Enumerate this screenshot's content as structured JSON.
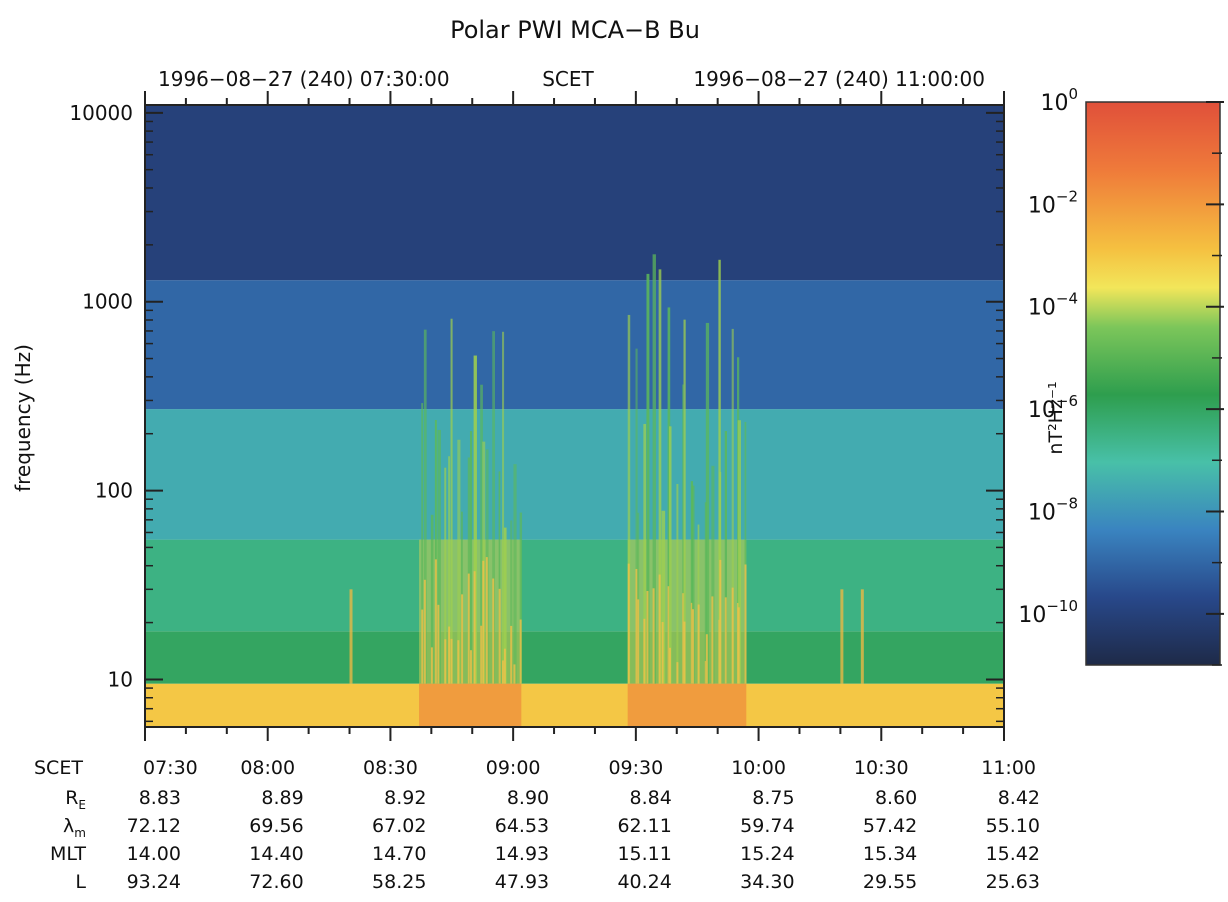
{
  "chart_data": {
    "type": "heatmap",
    "title": "Polar PWI MCA−B Bu",
    "top_axis": {
      "left_label": "1996−08−27 (240) 07:30:00",
      "center_label": "SCET",
      "right_label": "1996−08−27 (240) 11:00:00"
    },
    "ylabel": "frequency (Hz)",
    "yscale": "log",
    "ylim": [
      5.6,
      11000
    ],
    "yticks": [
      10,
      100,
      1000,
      10000
    ],
    "ytick_labels": [
      "10",
      "100",
      "1000",
      "10000"
    ],
    "xlim": [
      "07:30",
      "11:00"
    ],
    "xticks": [
      "07:30",
      "08:00",
      "08:30",
      "09:00",
      "09:30",
      "10:00",
      "10:30",
      "11:00"
    ],
    "colorbar": {
      "label": "nT²Hz⁻¹",
      "scale": "log",
      "range": [
        "1e-11",
        "1e0"
      ],
      "tick_values": [
        "1e0",
        "1e-2",
        "1e-4",
        "1e-6",
        "1e-8",
        "1e-10"
      ],
      "tick_mantissa": "10",
      "tick_exponents": [
        "0",
        "−2",
        "−4",
        "−6",
        "−8",
        "−10"
      ]
    },
    "spectral_bands": [
      {
        "f_min": 5.6,
        "f_max": 9.5,
        "level": "1e-3"
      },
      {
        "f_min": 9.5,
        "f_max": 18,
        "level": "1e-6"
      },
      {
        "f_min": 18,
        "f_max": 55,
        "level": "1e-6.5"
      },
      {
        "f_min": 55,
        "f_max": 270,
        "level": "1e-7.5"
      },
      {
        "f_min": 270,
        "f_max": 1300,
        "level": "1e-9"
      },
      {
        "f_min": 1300,
        "f_max": 11000,
        "level": "1e-10"
      }
    ],
    "activity_intervals": [
      {
        "start": "08:37",
        "end": "09:02",
        "f_peak": 1000
      },
      {
        "start": "09:28",
        "end": "09:57",
        "f_peak": 2000
      }
    ],
    "ephemeris": {
      "time_row": {
        "label": "SCET",
        "values": [
          "07:30",
          "08:00",
          "08:30",
          "09:00",
          "09:30",
          "10:00",
          "10:30",
          "11:00"
        ]
      },
      "rows": [
        {
          "label_main": "R",
          "label_sub": "E",
          "values": [
            "8.83",
            "8.89",
            "8.92",
            "8.90",
            "8.84",
            "8.75",
            "8.60",
            "8.42"
          ]
        },
        {
          "label_main": "λ",
          "label_sub": "m",
          "values": [
            "72.12",
            "69.56",
            "67.02",
            "64.53",
            "62.11",
            "59.74",
            "57.42",
            "55.10"
          ]
        },
        {
          "label_main": "MLT",
          "label_sub": "",
          "values": [
            "14.00",
            "14.40",
            "14.70",
            "14.93",
            "15.11",
            "15.24",
            "15.34",
            "15.42"
          ]
        },
        {
          "label_main": "L",
          "label_sub": "",
          "values": [
            "93.24",
            "72.60",
            "58.25",
            "47.93",
            "40.24",
            "34.30",
            "29.55",
            "25.63"
          ]
        }
      ]
    }
  }
}
